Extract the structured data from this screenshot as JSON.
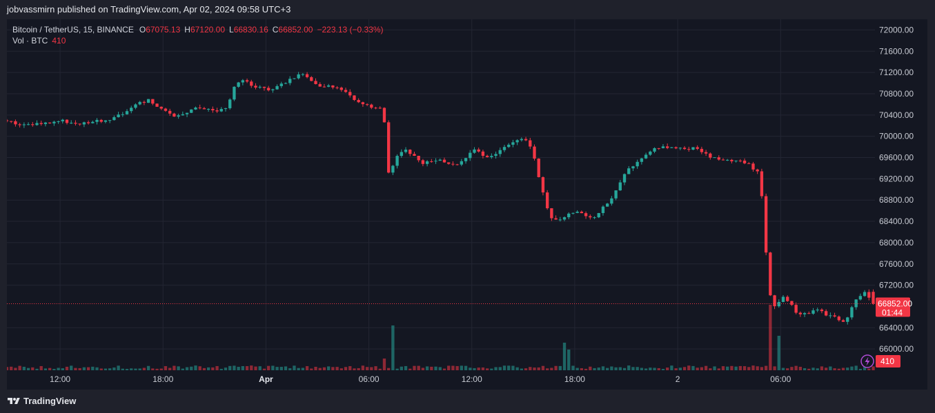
{
  "header": {
    "published_text": "jobvassmirn published on TradingView.com, Apr 02, 2024 09:58 UTC+3"
  },
  "legend": {
    "symbol": "Bitcoin / TetherUS, 15, BINANCE",
    "open_label": "O",
    "open": "67075.13",
    "high_label": "H",
    "high": "67120.00",
    "low_label": "L",
    "low": "66830.16",
    "close_label": "C",
    "close": "66852.00",
    "change": "−223.13 (−0.33%)",
    "vol_label": "Vol · BTC",
    "vol_value": "410"
  },
  "price_tag": {
    "price": "66852.00",
    "countdown": "01:44"
  },
  "volume_tag": {
    "value": "410"
  },
  "footer": {
    "brand": "TradingView"
  },
  "icons": {
    "logo": "tradingview-logo-icon",
    "alert": "lightning-icon"
  },
  "colors": {
    "up": "#26a69a",
    "down": "#f23645",
    "background": "#141722",
    "grid": "#232633"
  },
  "chart_data": {
    "type": "candlestick",
    "title": "Bitcoin / TetherUS, 15, BINANCE",
    "y_ticks": [
      "72000.00",
      "71600.00",
      "71200.00",
      "70800.00",
      "70400.00",
      "70000.00",
      "69600.00",
      "69200.00",
      "68800.00",
      "68400.00",
      "68000.00",
      "67600.00",
      "67200.00",
      "66400.00",
      "66000.00"
    ],
    "y_range": [
      65600,
      72200
    ],
    "x_labels": [
      {
        "label": "12:00",
        "hour": 12,
        "bold": false
      },
      {
        "label": "18:00",
        "hour": 18,
        "bold": false
      },
      {
        "label": "Apr",
        "hour": 24,
        "bold": true
      },
      {
        "label": "06:00",
        "hour": 30,
        "bold": false
      },
      {
        "label": "12:00",
        "hour": 36,
        "bold": false
      },
      {
        "label": "18:00",
        "hour": 42,
        "bold": false
      },
      {
        "label": "2",
        "hour": 48,
        "bold": false
      },
      {
        "label": "06:00",
        "hour": 54,
        "bold": false
      }
    ],
    "x_range_hours": [
      8.9,
      59.5
    ],
    "last_price": 66852,
    "price_anchors": [
      [
        8.9,
        70300
      ],
      [
        9.5,
        70250
      ],
      [
        10.5,
        70220
      ],
      [
        11.5,
        70260
      ],
      [
        12.5,
        70290
      ],
      [
        13.0,
        70230
      ],
      [
        14.0,
        70260
      ],
      [
        15.0,
        70310
      ],
      [
        16.2,
        70470
      ],
      [
        16.8,
        70620
      ],
      [
        17.5,
        70680
      ],
      [
        18.3,
        70460
      ],
      [
        19.0,
        70380
      ],
      [
        20.0,
        70520
      ],
      [
        21.5,
        70480
      ],
      [
        22.0,
        70510
      ],
      [
        22.4,
        70960
      ],
      [
        23.0,
        71100
      ],
      [
        23.5,
        70940
      ],
      [
        24.3,
        70870
      ],
      [
        25.3,
        70980
      ],
      [
        26.3,
        71200
      ],
      [
        27.3,
        70960
      ],
      [
        28.3,
        70920
      ],
      [
        29.0,
        70820
      ],
      [
        29.5,
        70650
      ],
      [
        30.5,
        70550
      ],
      [
        31.0,
        70500
      ],
      [
        31.2,
        70220
      ],
      [
        31.4,
        69300
      ],
      [
        31.9,
        69620
      ],
      [
        32.3,
        69780
      ],
      [
        33.3,
        69500
      ],
      [
        34.5,
        69550
      ],
      [
        35.5,
        69450
      ],
      [
        36.3,
        69750
      ],
      [
        37.3,
        69580
      ],
      [
        38.3,
        69850
      ],
      [
        39.3,
        69950
      ],
      [
        39.8,
        69720
      ],
      [
        40.3,
        69050
      ],
      [
        40.8,
        68500
      ],
      [
        41.3,
        68400
      ],
      [
        42.3,
        68600
      ],
      [
        43.3,
        68450
      ],
      [
        44.3,
        68800
      ],
      [
        45.3,
        69380
      ],
      [
        46.3,
        69600
      ],
      [
        46.8,
        69800
      ],
      [
        47.3,
        69790
      ],
      [
        48.3,
        69800
      ],
      [
        49.3,
        69760
      ],
      [
        50.3,
        69580
      ],
      [
        51.3,
        69550
      ],
      [
        52.3,
        69500
      ],
      [
        53.0,
        69300
      ],
      [
        53.3,
        68450
      ],
      [
        53.5,
        67200
      ],
      [
        53.8,
        66800
      ],
      [
        54.5,
        67000
      ],
      [
        55.3,
        66620
      ],
      [
        56.3,
        66730
      ],
      [
        57.3,
        66600
      ],
      [
        58.0,
        66520
      ],
      [
        58.7,
        66950
      ],
      [
        59.3,
        67080
      ],
      [
        59.5,
        66852
      ]
    ],
    "volume_spikes": [
      {
        "hour": 22.5,
        "value": 5
      },
      {
        "hour": 27.0,
        "value": 5
      },
      {
        "hour": 30.8,
        "value": 17
      },
      {
        "hour": 31.3,
        "value": 65
      },
      {
        "hour": 41.4,
        "value": 40
      },
      {
        "hour": 41.6,
        "value": 30
      },
      {
        "hour": 53.3,
        "value": 35
      },
      {
        "hour": 53.5,
        "value": 95
      },
      {
        "hour": 53.8,
        "value": 50
      }
    ]
  }
}
